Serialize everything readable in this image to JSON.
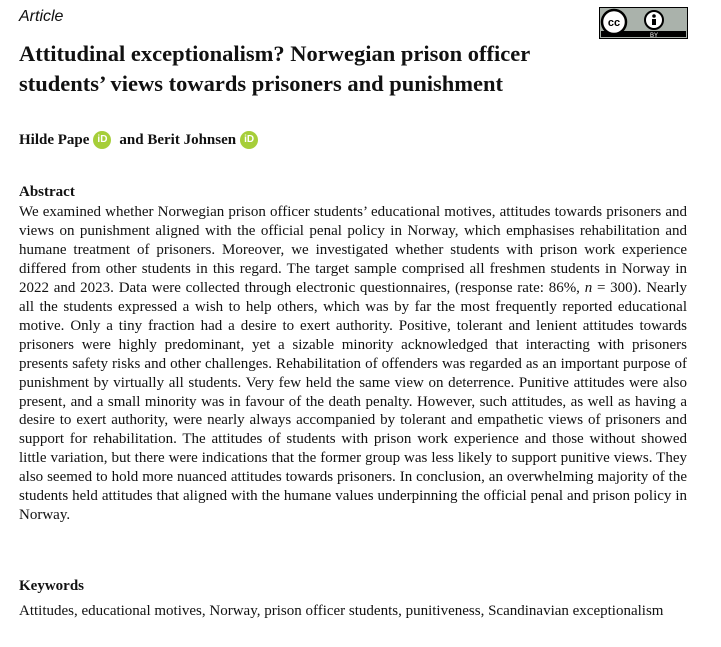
{
  "article_type": "Article",
  "license": {
    "cc": "cc",
    "by": "BY"
  },
  "title": "Attitudinal exceptionalism? Norwegian prison officer students’ views towards prisoners and punishment",
  "authors": [
    {
      "name": "Hilde Pape",
      "orcid": "iD"
    },
    {
      "name": "and Berit Johnsen",
      "orcid": "iD"
    }
  ],
  "abstract": {
    "heading": "Abstract",
    "parts": [
      "We examined whether Norwegian prison officer students’ educational motives, attitudes towards prisoners and views on punishment aligned with the official penal policy in Norway, which emphasises rehabilitation and humane treatment of prisoners. Moreover, we investigated whether students with prison work experience differed from other students in this regard. The target sample comprised all freshmen students in Norway in 2022 and 2023. Data were collected through electronic questionnaires, (response rate: 86%, ",
      "n",
      " = 300). Nearly all the students expressed a wish to help others, which was by far the most frequently reported educational motive. Only a tiny fraction had a desire to exert authority. Positive, tolerant and lenient attitudes towards prisoners were highly predominant, yet a sizable minority acknowledged that interacting with prisoners presents safety risks and other challenges. Rehabilitation of offenders was regarded as an important purpose of punishment by virtually all students. Very few held the same view on deterrence. Punitive attitudes were also present, and a small minority was in favour of the death penalty. However, such attitudes, as well as having a desire to exert authority, were nearly always accompanied by tolerant and empathetic views of prisoners and support for rehabilitation. The attitudes of students with prison work experience and those without showed little variation, but there were indications that the former group was less likely to support punitive views. They also seemed to hold more nuanced attitudes towards prisoners. In conclusion, an overwhelming majority of the students held attitudes that aligned with the humane values underpinning the official penal and prison policy in Norway."
    ]
  },
  "keywords": {
    "heading": "Keywords",
    "text": "Attitudes, educational motives, Norway, prison officer students, punitiveness, Scandinavian exceptionalism"
  }
}
